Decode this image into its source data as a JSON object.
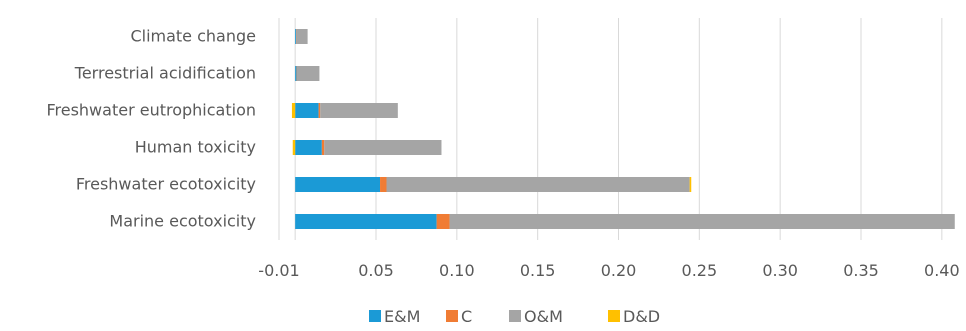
{
  "chart_data": {
    "type": "bar",
    "orientation": "horizontal",
    "stacked": true,
    "title": "",
    "xlabel": "",
    "ylabel": "",
    "categories": [
      "Climate change",
      "Terrestrial acidification",
      "Freshwater eutrophication",
      "Human toxicity",
      "Freshwater ecotoxicity",
      "Marine ecotoxicity"
    ],
    "series": [
      {
        "name": "E&M",
        "color": "#1b9ad6",
        "values": [
          0.0006,
          0.0008,
          0.0145,
          0.0165,
          0.0525,
          0.0875
        ]
      },
      {
        "name": "C",
        "color": "#f07c34",
        "values": [
          0.0001,
          0.0002,
          0.001,
          0.0015,
          0.004,
          0.008
        ]
      },
      {
        "name": "O&M",
        "color": "#a5a5a5",
        "values": [
          0.007,
          0.014,
          0.048,
          0.0725,
          0.1875,
          0.3125
        ]
      },
      {
        "name": "D&D",
        "color": "#ffc000",
        "values": [
          0.0,
          0.0,
          -0.002,
          -0.0015,
          0.001,
          0.0
        ]
      }
    ],
    "xlim": [
      -0.01,
      0.41
    ],
    "ticks": [
      -0.01,
      0.05,
      0.1,
      0.15,
      0.2,
      0.25,
      0.3,
      0.35,
      0.4
    ],
    "tick_labels": [
      "-0.01",
      "0.05",
      "0.10",
      "0.15",
      "0.20",
      "0.25",
      "0.30",
      "0.35",
      "0.40"
    ],
    "grid": true,
    "legend_position": "bottom"
  }
}
